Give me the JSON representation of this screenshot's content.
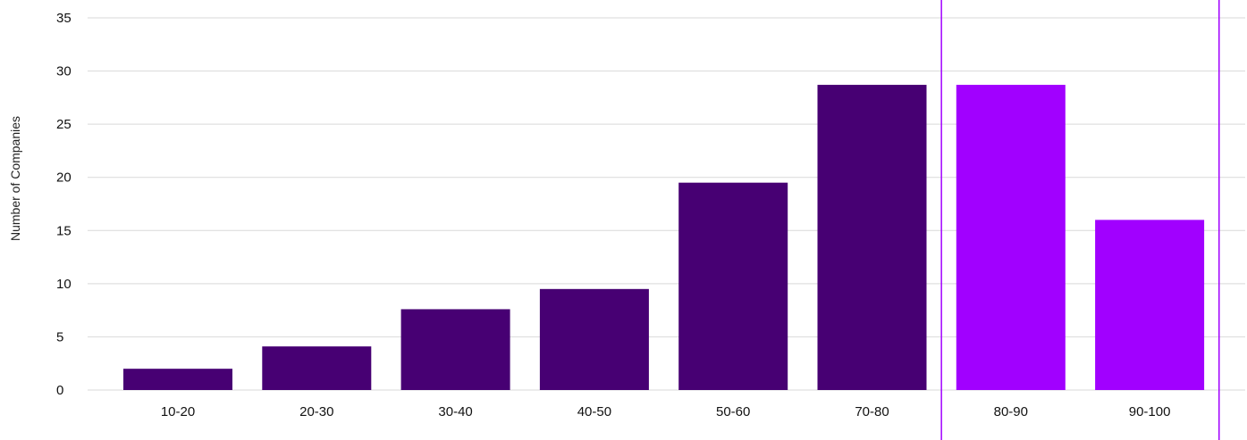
{
  "chart_data": {
    "type": "bar",
    "categories": [
      "10-20",
      "20-30",
      "30-40",
      "40-50",
      "50-60",
      "70-80",
      "80-90",
      "90-100"
    ],
    "values": [
      2,
      4.1,
      7.6,
      9.5,
      19.5,
      28.7,
      28.7,
      16
    ],
    "highlighted_categories": [
      "80-90",
      "90-100"
    ],
    "ylabel": "Number of Companies",
    "xlabel": "",
    "title": "",
    "ylim": [
      0,
      35
    ],
    "yticks": [
      0,
      5,
      10,
      15,
      20,
      25,
      30,
      35
    ],
    "grid": "horizontal",
    "colors": {
      "bar": "#470073",
      "highlight_bar": "#a100ff",
      "highlight_border": "#a100ff",
      "grid": "#d9d9d9",
      "text": "#111111"
    }
  }
}
